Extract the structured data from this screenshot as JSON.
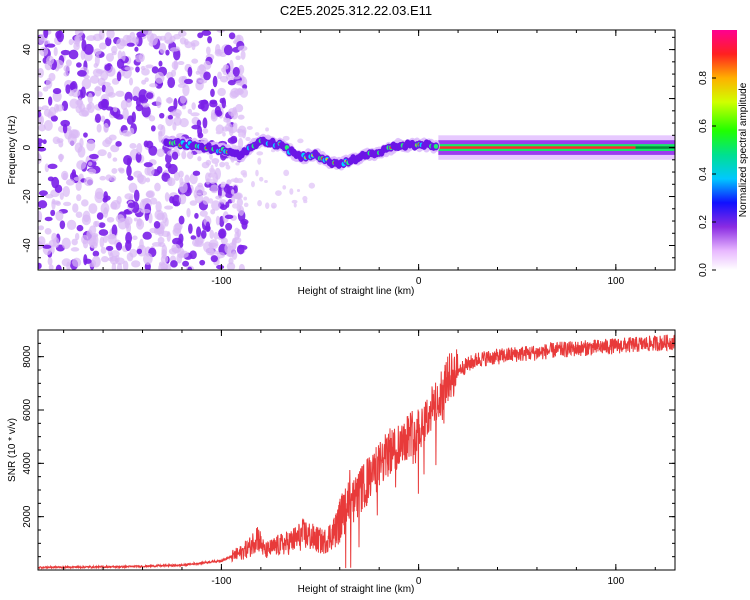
{
  "title": "C2E5.2025.312.22.03.E11",
  "chart_data": [
    {
      "type": "heatmap",
      "xlabel": "Height of straight line (km)",
      "ylabel": "Frequency (Hz)",
      "xlim": [
        -193,
        130
      ],
      "ylim": [
        -50,
        48
      ],
      "xticks": [
        -100,
        0,
        100
      ],
      "xtick_labels": [
        "-100",
        "0",
        "100"
      ],
      "yticks": [
        -40,
        -20,
        0,
        20,
        40
      ],
      "ytick_labels": [
        "-40",
        "-20",
        "0",
        "20",
        "40"
      ],
      "colorbar": {
        "label": "Normalized spectral amplitude",
        "range": [
          0,
          1
        ],
        "ticks": [
          0.0,
          0.2,
          0.4,
          0.6,
          0.8
        ],
        "tick_labels": [
          "0.0",
          "0.2",
          "0.4",
          "0.6",
          "0.8"
        ]
      },
      "ridge_center_hz": {
        "x": [
          -125,
          -115,
          -100,
          -90,
          -80,
          -70,
          -60,
          -52,
          -45,
          -40,
          -30,
          -20,
          -10,
          0,
          5,
          10,
          130
        ],
        "y": [
          2,
          1,
          -1,
          -3,
          3,
          1,
          -4,
          -3,
          -6,
          -7,
          -4,
          -2,
          1,
          1,
          1,
          0,
          0
        ]
      }
    },
    {
      "type": "line",
      "xlabel": "Height of straight line (km)",
      "ylabel": "SNR (10 * v/v)",
      "xlim": [
        -193,
        130
      ],
      "ylim": [
        0,
        9000
      ],
      "xticks": [
        -100,
        0,
        100
      ],
      "xtick_labels": [
        "-100",
        "0",
        "100"
      ],
      "yticks": [
        2000,
        4000,
        6000,
        8000
      ],
      "ytick_labels": [
        "2000",
        "4000",
        "6000",
        "8000"
      ],
      "series": [
        {
          "name": "SNR",
          "color": "#e83a3a",
          "x": [
            -193,
            -150,
            -120,
            -100,
            -90,
            -85,
            -82,
            -78,
            -72,
            -65,
            -58,
            -52,
            -48,
            -42,
            -38,
            -33,
            -30,
            -25,
            -20,
            -15,
            -10,
            -5,
            0,
            5,
            10,
            15,
            20,
            25,
            30,
            40,
            50,
            60,
            70,
            80,
            90,
            100,
            110,
            120,
            130
          ],
          "y": [
            100,
            120,
            180,
            350,
            650,
            900,
            1300,
            700,
            900,
            1050,
            1350,
            1150,
            1050,
            1500,
            2200,
            2500,
            2900,
            3400,
            3900,
            4400,
            4700,
            5100,
            5300,
            5800,
            6500,
            7200,
            7500,
            7700,
            7900,
            8000,
            8100,
            8150,
            8250,
            8300,
            8350,
            8400,
            8450,
            8500,
            8550
          ]
        }
      ]
    }
  ]
}
